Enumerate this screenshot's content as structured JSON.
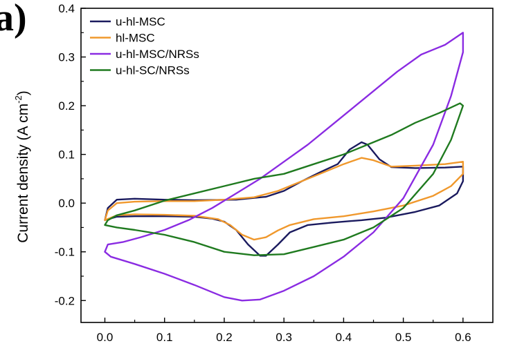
{
  "panel_label": "a)",
  "chart_data": {
    "type": "line",
    "title": "",
    "xlabel": "",
    "ylabel_main": "Current density (A cm",
    "ylabel_sup": "-2",
    "ylabel_close": ")",
    "xlim": [
      -0.04,
      0.65
    ],
    "ylim": [
      -0.245,
      0.4
    ],
    "x_ticks": [
      0.0,
      0.1,
      0.2,
      0.3,
      0.4,
      0.5,
      0.6
    ],
    "x_tick_labels": [
      "0.0",
      "0.1",
      "0.2",
      "0.3",
      "0.4",
      "0.5",
      "0.6"
    ],
    "y_ticks": [
      -0.2,
      -0.1,
      0.0,
      0.1,
      0.2,
      0.3,
      0.4
    ],
    "y_tick_labels": [
      "-0.2",
      "-0.1",
      "0.0",
      "0.1",
      "0.2",
      "0.3",
      "0.4"
    ],
    "grid": false,
    "legend_position": "top-left",
    "series": [
      {
        "name": "u-hl-MSC",
        "color": "#1a1a5e",
        "points": [
          [
            0.0,
            -0.035
          ],
          [
            0.02,
            -0.028
          ],
          [
            0.05,
            -0.027
          ],
          [
            0.1,
            -0.027
          ],
          [
            0.15,
            -0.028
          ],
          [
            0.18,
            -0.032
          ],
          [
            0.2,
            -0.038
          ],
          [
            0.22,
            -0.055
          ],
          [
            0.24,
            -0.085
          ],
          [
            0.26,
            -0.108
          ],
          [
            0.27,
            -0.108
          ],
          [
            0.29,
            -0.085
          ],
          [
            0.31,
            -0.06
          ],
          [
            0.34,
            -0.045
          ],
          [
            0.38,
            -0.04
          ],
          [
            0.43,
            -0.035
          ],
          [
            0.47,
            -0.03
          ],
          [
            0.52,
            -0.018
          ],
          [
            0.56,
            -0.005
          ],
          [
            0.59,
            0.02
          ],
          [
            0.6,
            0.045
          ],
          [
            0.6,
            0.075
          ],
          [
            0.57,
            0.073
          ],
          [
            0.52,
            0.072
          ],
          [
            0.48,
            0.074
          ],
          [
            0.46,
            0.09
          ],
          [
            0.44,
            0.12
          ],
          [
            0.43,
            0.125
          ],
          [
            0.41,
            0.11
          ],
          [
            0.39,
            0.08
          ],
          [
            0.36,
            0.063
          ],
          [
            0.33,
            0.045
          ],
          [
            0.3,
            0.025
          ],
          [
            0.27,
            0.013
          ],
          [
            0.22,
            0.007
          ],
          [
            0.15,
            0.006
          ],
          [
            0.1,
            0.007
          ],
          [
            0.05,
            0.009
          ],
          [
            0.02,
            0.007
          ],
          [
            0.005,
            -0.01
          ],
          [
            0.0,
            -0.035
          ]
        ]
      },
      {
        "name": "hl-MSC",
        "color": "#f0982c",
        "points": [
          [
            0.0,
            -0.035
          ],
          [
            0.02,
            -0.025
          ],
          [
            0.05,
            -0.023
          ],
          [
            0.1,
            -0.024
          ],
          [
            0.15,
            -0.026
          ],
          [
            0.19,
            -0.033
          ],
          [
            0.21,
            -0.045
          ],
          [
            0.23,
            -0.065
          ],
          [
            0.25,
            -0.075
          ],
          [
            0.27,
            -0.07
          ],
          [
            0.29,
            -0.056
          ],
          [
            0.31,
            -0.045
          ],
          [
            0.35,
            -0.033
          ],
          [
            0.4,
            -0.027
          ],
          [
            0.45,
            -0.017
          ],
          [
            0.5,
            -0.005
          ],
          [
            0.55,
            0.015
          ],
          [
            0.58,
            0.035
          ],
          [
            0.6,
            0.06
          ],
          [
            0.6,
            0.085
          ],
          [
            0.57,
            0.08
          ],
          [
            0.52,
            0.077
          ],
          [
            0.48,
            0.075
          ],
          [
            0.45,
            0.088
          ],
          [
            0.43,
            0.093
          ],
          [
            0.4,
            0.08
          ],
          [
            0.37,
            0.065
          ],
          [
            0.33,
            0.045
          ],
          [
            0.29,
            0.025
          ],
          [
            0.25,
            0.012
          ],
          [
            0.2,
            0.007
          ],
          [
            0.15,
            0.004
          ],
          [
            0.1,
            0.004
          ],
          [
            0.05,
            0.003
          ],
          [
            0.02,
            0.0
          ],
          [
            0.005,
            -0.015
          ],
          [
            0.0,
            -0.035
          ]
        ]
      },
      {
        "name": "u-hl-MSC/NRSs",
        "color": "#8a2be2",
        "points": [
          [
            0.0,
            -0.1
          ],
          [
            0.01,
            -0.11
          ],
          [
            0.05,
            -0.125
          ],
          [
            0.1,
            -0.145
          ],
          [
            0.15,
            -0.168
          ],
          [
            0.2,
            -0.193
          ],
          [
            0.23,
            -0.2
          ],
          [
            0.26,
            -0.198
          ],
          [
            0.3,
            -0.18
          ],
          [
            0.35,
            -0.15
          ],
          [
            0.4,
            -0.11
          ],
          [
            0.45,
            -0.06
          ],
          [
            0.5,
            0.01
          ],
          [
            0.55,
            0.12
          ],
          [
            0.58,
            0.22
          ],
          [
            0.6,
            0.31
          ],
          [
            0.6,
            0.35
          ],
          [
            0.57,
            0.325
          ],
          [
            0.53,
            0.305
          ],
          [
            0.49,
            0.27
          ],
          [
            0.45,
            0.23
          ],
          [
            0.42,
            0.2
          ],
          [
            0.38,
            0.16
          ],
          [
            0.34,
            0.12
          ],
          [
            0.3,
            0.085
          ],
          [
            0.26,
            0.05
          ],
          [
            0.22,
            0.02
          ],
          [
            0.18,
            -0.01
          ],
          [
            0.14,
            -0.035
          ],
          [
            0.1,
            -0.055
          ],
          [
            0.06,
            -0.07
          ],
          [
            0.03,
            -0.08
          ],
          [
            0.005,
            -0.085
          ],
          [
            0.0,
            -0.1
          ]
        ]
      },
      {
        "name": "u-hl-SC/NRSs",
        "color": "#1f7a1f",
        "points": [
          [
            0.0,
            -0.045
          ],
          [
            0.02,
            -0.05
          ],
          [
            0.05,
            -0.055
          ],
          [
            0.1,
            -0.065
          ],
          [
            0.15,
            -0.08
          ],
          [
            0.2,
            -0.1
          ],
          [
            0.25,
            -0.107
          ],
          [
            0.3,
            -0.105
          ],
          [
            0.35,
            -0.09
          ],
          [
            0.4,
            -0.075
          ],
          [
            0.45,
            -0.05
          ],
          [
            0.5,
            -0.01
          ],
          [
            0.55,
            0.06
          ],
          [
            0.58,
            0.13
          ],
          [
            0.6,
            0.2
          ],
          [
            0.595,
            0.205
          ],
          [
            0.56,
            0.185
          ],
          [
            0.52,
            0.165
          ],
          [
            0.48,
            0.14
          ],
          [
            0.44,
            0.12
          ],
          [
            0.4,
            0.1
          ],
          [
            0.35,
            0.08
          ],
          [
            0.3,
            0.06
          ],
          [
            0.25,
            0.05
          ],
          [
            0.2,
            0.035
          ],
          [
            0.15,
            0.02
          ],
          [
            0.1,
            0.005
          ],
          [
            0.05,
            -0.015
          ],
          [
            0.02,
            -0.025
          ],
          [
            0.005,
            -0.035
          ],
          [
            0.0,
            -0.045
          ]
        ]
      }
    ]
  }
}
